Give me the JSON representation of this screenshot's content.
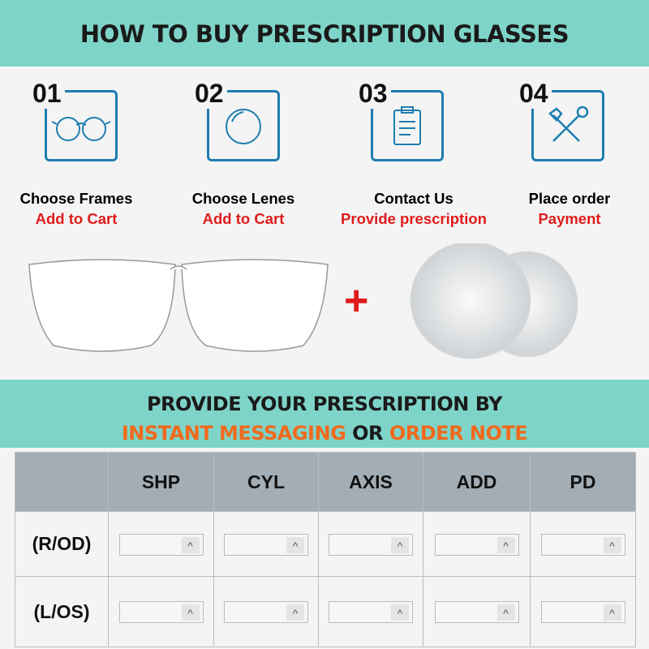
{
  "header": {
    "title": "HOW TO BUY PRESCRIPTION GLASSES"
  },
  "steps": [
    {
      "number": "01",
      "title": "Choose Frames",
      "action": "Add to Cart",
      "icon": "glasses-icon"
    },
    {
      "number": "02",
      "title": "Choose Lenes",
      "action": "Add to Cart",
      "icon": "lens-icon"
    },
    {
      "number": "03",
      "title": "Contact Us",
      "action": "Provide prescription",
      "icon": "clipboard-icon"
    },
    {
      "number": "04",
      "title": "Place order",
      "action": "Payment",
      "icon": "tools-icon"
    }
  ],
  "plus": "+",
  "banner": {
    "line1": "PROVIDE YOUR PRESCRIPTION BY",
    "highlight1": "INSTANT MESSAGING",
    "connector": "OR",
    "highlight2": "ORDER NOTE"
  },
  "table": {
    "columns": [
      "SHP",
      "CYL",
      "AXIS",
      "ADD",
      "PD"
    ],
    "rows": [
      "(R/OD)",
      "(L/OS)"
    ],
    "stepper_glyph": "^"
  },
  "colors": {
    "teal": "#7fd4c9",
    "accent_blue": "#1e7db0",
    "red": "#e01b1b",
    "orange": "#f06a1c",
    "table_header": "#a3adb5"
  }
}
